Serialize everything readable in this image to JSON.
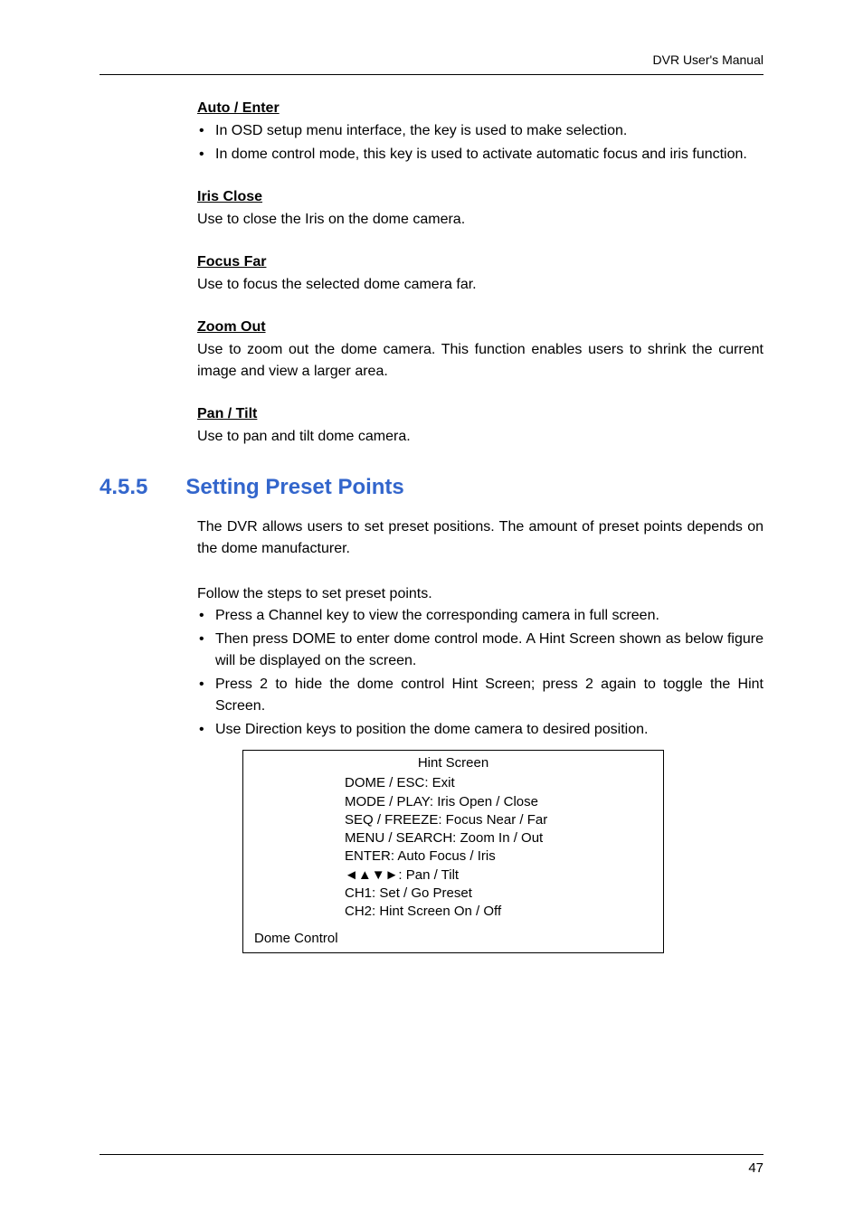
{
  "header": {
    "right": "DVR User's Manual"
  },
  "sections": {
    "autoEnter": {
      "title": "Auto / Enter",
      "bullets": [
        "In OSD setup menu interface, the key is used to make selection.",
        "In dome control mode, this key is used to activate automatic focus and iris function."
      ]
    },
    "irisClose": {
      "title": "Iris Close",
      "body": "Use to close the Iris on the dome camera."
    },
    "focusFar": {
      "title": "Focus Far",
      "body": "Use to focus the selected dome camera far."
    },
    "zoomOut": {
      "title": "Zoom Out",
      "body": "Use to zoom out the dome camera. This function enables users to shrink the current image and view a larger area."
    },
    "panTilt": {
      "title": "Pan / Tilt",
      "body": "Use to pan and tilt dome camera."
    }
  },
  "h2": {
    "num": "4.5.5",
    "title": "Setting Preset Points"
  },
  "presetIntro": "The DVR allows users to set preset positions. The amount of preset points depends on the dome manufacturer.",
  "presetSteps": {
    "lead": "Follow the steps to set preset points.",
    "bullets": [
      "Press a Channel key to view the corresponding camera in full screen.",
      "Then press DOME to enter dome control mode. A Hint Screen shown as below figure will be displayed on the screen.",
      "Press 2 to hide the dome control Hint Screen; press 2 again to toggle the Hint Screen.",
      "Use Direction keys to position the dome camera to desired position."
    ]
  },
  "hintBox": {
    "title": "Hint Screen",
    "lines": [
      "DOME / ESC: Exit",
      "MODE / PLAY: Iris Open / Close",
      "SEQ / FREEZE: Focus Near / Far",
      "MENU / SEARCH: Zoom In / Out",
      "ENTER: Auto Focus / Iris",
      "◄▲▼►: Pan / Tilt",
      "CH1: Set / Go Preset",
      "CH2: Hint Screen On / Off"
    ],
    "footer": "Dome Control"
  },
  "footer": {
    "pageNum": "47"
  },
  "colors": {
    "heading": "#3366cc",
    "text": "#000000",
    "border": "#000000",
    "bg": "#ffffff"
  }
}
